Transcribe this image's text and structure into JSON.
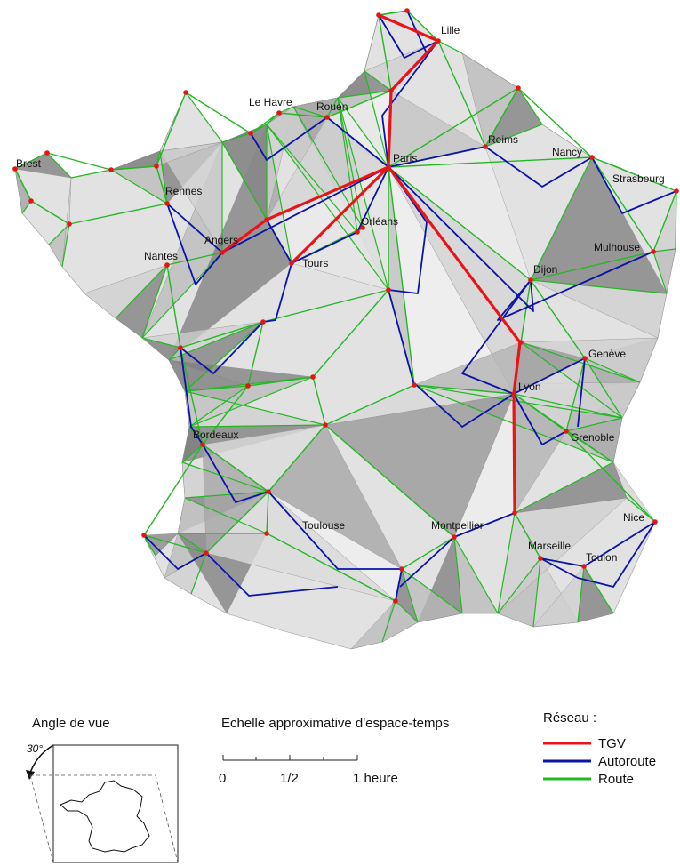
{
  "colors": {
    "tgv": "#e8141a",
    "autoroute": "#0a14a8",
    "route": "#23b823",
    "city_point": "#e51515",
    "surface_light": "#e2e2e2",
    "surface_mid": "#b9b9b9",
    "surface_dark": "#7c7c7c"
  },
  "cities": [
    {
      "id": "lille",
      "name": "Lille"
    },
    {
      "id": "le_havre",
      "name": "Le Havre"
    },
    {
      "id": "rouen",
      "name": "Rouen"
    },
    {
      "id": "reims",
      "name": "Reims"
    },
    {
      "id": "paris",
      "name": "Paris"
    },
    {
      "id": "brest",
      "name": "Brest"
    },
    {
      "id": "rennes",
      "name": "Rennes"
    },
    {
      "id": "nancy",
      "name": "Nancy"
    },
    {
      "id": "strasbourg",
      "name": "Strasbourg"
    },
    {
      "id": "orleans",
      "name": "Orléans"
    },
    {
      "id": "angers",
      "name": "Angers"
    },
    {
      "id": "nantes",
      "name": "Nantes"
    },
    {
      "id": "tours",
      "name": "Tours"
    },
    {
      "id": "mulhouse",
      "name": "Mulhouse"
    },
    {
      "id": "dijon",
      "name": "Dijon"
    },
    {
      "id": "geneve",
      "name": "Genève"
    },
    {
      "id": "lyon",
      "name": "Lyon"
    },
    {
      "id": "bordeaux",
      "name": "Bordeaux"
    },
    {
      "id": "grenoble",
      "name": "Grenoble"
    },
    {
      "id": "nice",
      "name": "Nice"
    },
    {
      "id": "toulouse",
      "name": "Toulouse"
    },
    {
      "id": "montpellier",
      "name": "Montpellier"
    },
    {
      "id": "marseille",
      "name": "Marseille"
    },
    {
      "id": "toulon",
      "name": "Toulon"
    }
  ],
  "angle": {
    "title": "Angle de vue",
    "value": "30°"
  },
  "scale": {
    "title": "Echelle approximative d'espace-temps",
    "tick0": "0",
    "tick_half": "1/2",
    "tick1": "1 heure"
  },
  "legend": {
    "title": "Réseau :",
    "items": [
      {
        "label": "TGV",
        "color": "#e8141a"
      },
      {
        "label": "Autoroute",
        "color": "#0a14a8"
      },
      {
        "label": "Route",
        "color": "#23b823"
      }
    ]
  }
}
